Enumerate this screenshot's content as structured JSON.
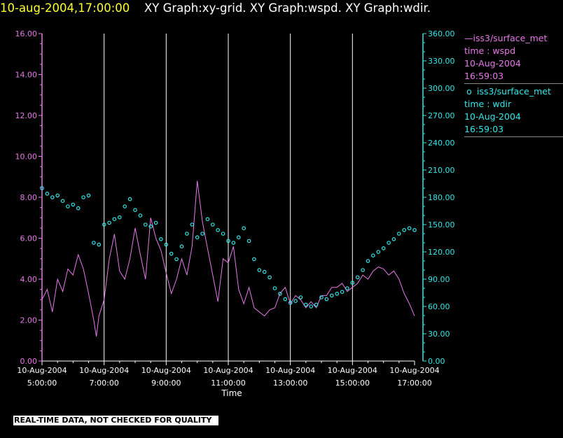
{
  "title": {
    "timestamp": "10-aug-2004,17:00:00",
    "graphs": "XY Graph:xy-grid.  XY Graph:wspd.  XY Graph:wdir."
  },
  "colors": {
    "timestamp": "#ffff33",
    "graphs": "#ffffff",
    "wspd": "#e879e8",
    "wdir": "#33e8e8",
    "grid": "#ffffff"
  },
  "legend": [
    {
      "symbol": "—",
      "lines": [
        "iss3/surface_met",
        "time : wspd",
        "10-Aug-2004",
        "16:59:03"
      ]
    },
    {
      "symbol": "o",
      "lines": [
        "iss3/surface_met",
        "time : wdir",
        "10-Aug-2004",
        "16:59:03"
      ]
    }
  ],
  "banner": "REAL-TIME DATA, NOT CHECKED FOR QUALITY",
  "chart_data": {
    "type": "line",
    "xlabel": "Time",
    "xlim": [
      "10-Aug-2004 05:00:00",
      "10-Aug-2004 17:00:00"
    ],
    "x_ticks": [
      {
        "date": "10-Aug-2004",
        "time": "5:00:00"
      },
      {
        "date": "10-Aug-2004",
        "time": "7:00:00"
      },
      {
        "date": "10-Aug-2004",
        "time": "9:00:00"
      },
      {
        "date": "10-Aug-2004",
        "time": "11:00:00"
      },
      {
        "date": "10-Aug-2004",
        "time": "13:00:00"
      },
      {
        "date": "10-Aug-2004",
        "time": "15:00:00"
      },
      {
        "date": "10-Aug-2004",
        "time": "17:00:00"
      }
    ],
    "left_axis": {
      "ylim": [
        0,
        16
      ],
      "ticks": [
        "0.00",
        "2.00",
        "4.00",
        "6.00",
        "8.00",
        "10.00",
        "12.00",
        "14.00",
        "16.00"
      ]
    },
    "right_axis": {
      "ylim": [
        0,
        360
      ],
      "ticks": [
        "0.00",
        "30.00",
        "60.00",
        "90.00",
        "120.00",
        "150.00",
        "180.00",
        "210.00",
        "240.00",
        "270.00",
        "300.00",
        "330.00",
        "360.00"
      ]
    },
    "grid": "vertical lines at major x ticks",
    "legend_position": "right",
    "series": [
      {
        "name": "iss3/surface_met time : wspd",
        "style": "line",
        "axis": "left",
        "points": [
          [
            "05:00",
            3.0
          ],
          [
            "05:10",
            3.5
          ],
          [
            "05:20",
            2.4
          ],
          [
            "05:30",
            4.0
          ],
          [
            "05:40",
            3.4
          ],
          [
            "05:50",
            4.5
          ],
          [
            "06:00",
            4.2
          ],
          [
            "06:10",
            5.2
          ],
          [
            "06:20",
            4.5
          ],
          [
            "06:30",
            3.3
          ],
          [
            "06:40",
            2.0
          ],
          [
            "06:45",
            1.2
          ],
          [
            "06:50",
            2.2
          ],
          [
            "07:00",
            3.0
          ],
          [
            "07:10",
            5.0
          ],
          [
            "07:20",
            6.2
          ],
          [
            "07:30",
            4.4
          ],
          [
            "07:40",
            4.0
          ],
          [
            "07:50",
            5.0
          ],
          [
            "08:00",
            6.5
          ],
          [
            "08:10",
            5.2
          ],
          [
            "08:20",
            4.0
          ],
          [
            "08:30",
            7.0
          ],
          [
            "08:40",
            6.0
          ],
          [
            "08:50",
            5.4
          ],
          [
            "09:00",
            4.3
          ],
          [
            "09:10",
            3.3
          ],
          [
            "09:20",
            4.0
          ],
          [
            "09:30",
            5.0
          ],
          [
            "09:40",
            4.2
          ],
          [
            "09:50",
            5.6
          ],
          [
            "10:00",
            8.8
          ],
          [
            "10:10",
            6.8
          ],
          [
            "10:20",
            5.5
          ],
          [
            "10:30",
            4.2
          ],
          [
            "10:40",
            2.9
          ],
          [
            "10:50",
            5.0
          ],
          [
            "11:00",
            4.8
          ],
          [
            "11:10",
            5.6
          ],
          [
            "11:20",
            3.5
          ],
          [
            "11:30",
            2.8
          ],
          [
            "11:40",
            3.6
          ],
          [
            "11:50",
            2.6
          ],
          [
            "12:00",
            2.4
          ],
          [
            "12:10",
            2.2
          ],
          [
            "12:20",
            2.5
          ],
          [
            "12:30",
            2.6
          ],
          [
            "12:40",
            3.3
          ],
          [
            "12:50",
            3.6
          ],
          [
            "13:00",
            2.8
          ],
          [
            "13:10",
            3.2
          ],
          [
            "13:20",
            3.0
          ],
          [
            "13:30",
            2.6
          ],
          [
            "13:40",
            2.9
          ],
          [
            "13:50",
            2.6
          ],
          [
            "14:00",
            3.2
          ],
          [
            "14:10",
            3.2
          ],
          [
            "14:20",
            3.6
          ],
          [
            "14:30",
            3.6
          ],
          [
            "14:40",
            3.8
          ],
          [
            "14:50",
            3.4
          ],
          [
            "15:00",
            3.6
          ],
          [
            "15:10",
            3.8
          ],
          [
            "15:20",
            4.2
          ],
          [
            "15:30",
            4.0
          ],
          [
            "15:40",
            4.4
          ],
          [
            "15:50",
            4.6
          ],
          [
            "16:00",
            4.5
          ],
          [
            "16:10",
            4.2
          ],
          [
            "16:20",
            4.4
          ],
          [
            "16:30",
            4.0
          ],
          [
            "16:40",
            3.3
          ],
          [
            "16:50",
            2.8
          ],
          [
            "17:00",
            2.2
          ]
        ]
      },
      {
        "name": "iss3/surface_met time : wdir",
        "style": "scatter",
        "axis": "right",
        "points": [
          [
            "05:00",
            190
          ],
          [
            "05:10",
            184
          ],
          [
            "05:20",
            180
          ],
          [
            "05:30",
            182
          ],
          [
            "05:40",
            176
          ],
          [
            "05:50",
            170
          ],
          [
            "06:00",
            172
          ],
          [
            "06:10",
            168
          ],
          [
            "06:20",
            180
          ],
          [
            "06:30",
            182
          ],
          [
            "06:40",
            130
          ],
          [
            "06:50",
            128
          ],
          [
            "07:00",
            150
          ],
          [
            "07:10",
            152
          ],
          [
            "07:20",
            156
          ],
          [
            "07:30",
            158
          ],
          [
            "07:40",
            170
          ],
          [
            "07:50",
            178
          ],
          [
            "08:00",
            166
          ],
          [
            "08:10",
            160
          ],
          [
            "08:20",
            150
          ],
          [
            "08:30",
            148
          ],
          [
            "08:40",
            152
          ],
          [
            "08:50",
            134
          ],
          [
            "09:00",
            128
          ],
          [
            "09:10",
            118
          ],
          [
            "09:20",
            112
          ],
          [
            "09:30",
            126
          ],
          [
            "09:40",
            140
          ],
          [
            "09:50",
            150
          ],
          [
            "10:00",
            136
          ],
          [
            "10:10",
            140
          ],
          [
            "10:20",
            156
          ],
          [
            "10:30",
            150
          ],
          [
            "10:40",
            144
          ],
          [
            "10:50",
            140
          ],
          [
            "11:00",
            132
          ],
          [
            "11:10",
            130
          ],
          [
            "11:20",
            136
          ],
          [
            "11:30",
            146
          ],
          [
            "11:40",
            132
          ],
          [
            "11:50",
            112
          ],
          [
            "12:00",
            100
          ],
          [
            "12:10",
            98
          ],
          [
            "12:20",
            92
          ],
          [
            "12:30",
            80
          ],
          [
            "12:40",
            74
          ],
          [
            "12:50",
            68
          ],
          [
            "13:00",
            64
          ],
          [
            "13:10",
            66
          ],
          [
            "13:20",
            70
          ],
          [
            "13:30",
            62
          ],
          [
            "13:40",
            60
          ],
          [
            "13:50",
            62
          ],
          [
            "14:00",
            70
          ],
          [
            "14:10",
            68
          ],
          [
            "14:20",
            72
          ],
          [
            "14:30",
            74
          ],
          [
            "14:40",
            76
          ],
          [
            "14:50",
            80
          ],
          [
            "15:00",
            86
          ],
          [
            "15:10",
            92
          ],
          [
            "15:20",
            100
          ],
          [
            "15:30",
            110
          ],
          [
            "15:40",
            116
          ],
          [
            "15:50",
            120
          ],
          [
            "16:00",
            124
          ],
          [
            "16:10",
            130
          ],
          [
            "16:20",
            134
          ],
          [
            "16:30",
            140
          ],
          [
            "16:40",
            144
          ],
          [
            "16:50",
            146
          ],
          [
            "17:00",
            144
          ]
        ]
      }
    ]
  }
}
